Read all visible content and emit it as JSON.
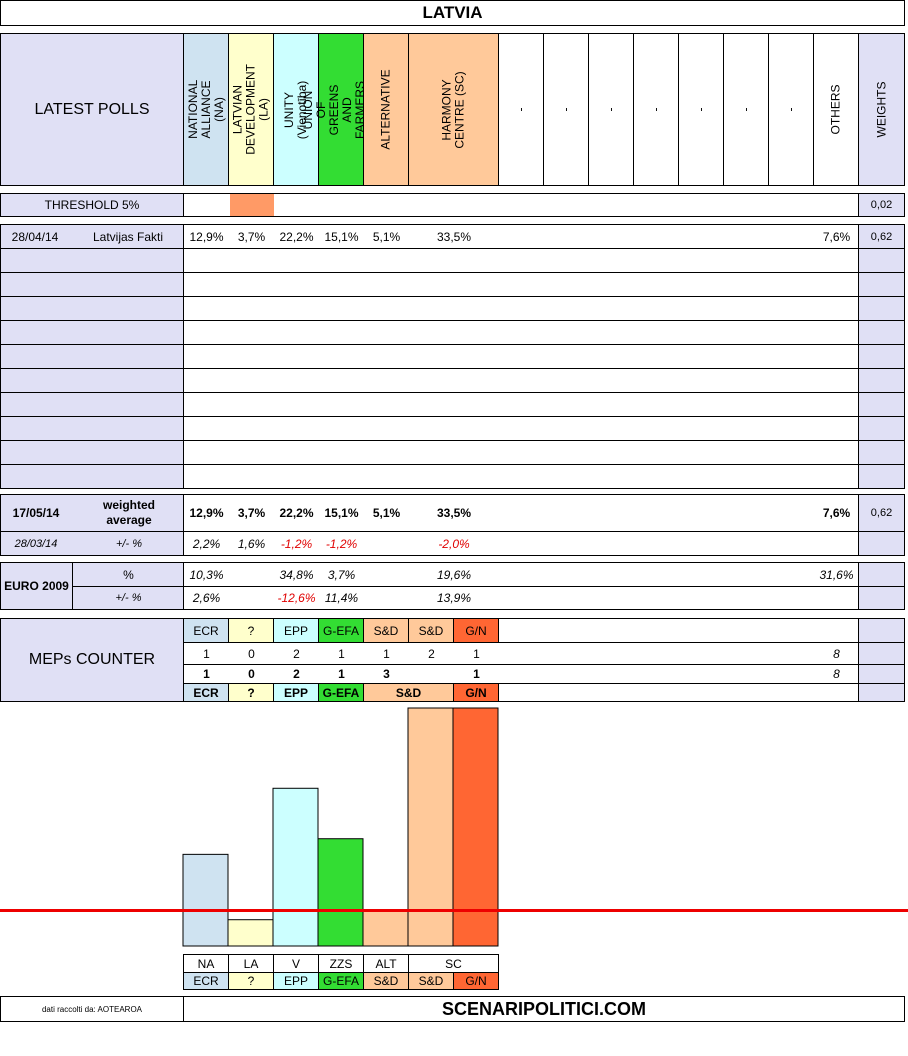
{
  "title": "LATVIA",
  "header": {
    "latest_polls": "LATEST POLLS",
    "parties": [
      {
        "label": "NATIONAL ALLIANCE (NA)",
        "color": "#cfe3f1"
      },
      {
        "label": "LATVIAN DEVELOPMENT (LA)",
        "color": "#ffffcc"
      },
      {
        "label": "UNITY (Vienotība)",
        "color": "#ccffff"
      },
      {
        "label": "UNION OF GREENS AND FARMERS (ZZS)",
        "color": "#33dd33"
      },
      {
        "label": "ALTERNATIVE",
        "color": "#ffc99a"
      },
      {
        "label": "HARMONY CENTRE (SC)",
        "color": "#ffc99a"
      }
    ],
    "dashes": [
      "-",
      "-",
      "-",
      "-",
      "-",
      "-",
      "-"
    ],
    "others": "OTHERS",
    "weights": "WEIGHTS"
  },
  "threshold": {
    "label": "THRESHOLD 5%",
    "weight": "0,02",
    "highlight_color": "#ff9a66"
  },
  "poll": {
    "date": "28/04/14",
    "source": "Latvijas Fakti",
    "values": [
      "12,9%",
      "3,7%",
      "22,2%",
      "15,1%",
      "5,1%",
      "33,5%"
    ],
    "others": "7,6%",
    "weight": "0,62"
  },
  "weighted": {
    "date": "17/05/14",
    "label": "weighted average",
    "values": [
      "12,9%",
      "3,7%",
      "22,2%",
      "15,1%",
      "5,1%",
      "33,5%"
    ],
    "others": "7,6%",
    "weight": "0,62",
    "prev_date": "28/03/14",
    "diff_label": "+/- %",
    "diffs": [
      "2,2%",
      "1,6%",
      "-1,2%",
      "-1,2%",
      "",
      "-2,0%"
    ]
  },
  "euro2009": {
    "label": "EURO 2009",
    "pct_label": "%",
    "pcts": [
      "10,3%",
      "",
      "34,8%",
      "3,7%",
      "",
      "19,6%"
    ],
    "others_pct": "31,6%",
    "diff_label": "+/- %",
    "diffs": [
      "2,6%",
      "",
      "-12,6%",
      "11,4%",
      "",
      "13,9%"
    ]
  },
  "meps": {
    "label": "MEPs COUNTER",
    "groups": [
      {
        "label": "ECR",
        "color": "#cfe3f1"
      },
      {
        "label": "?",
        "color": "#ffffcc"
      },
      {
        "label": "EPP",
        "color": "#ccffff"
      },
      {
        "label": "G-EFA",
        "color": "#33dd33"
      },
      {
        "label": "S&D",
        "color": "#ffc99a"
      },
      {
        "label": "S&D",
        "color": "#ffc99a"
      },
      {
        "label": "G/N",
        "color": "#ff6633"
      }
    ],
    "row1": [
      "1",
      "0",
      "2",
      "1",
      "1",
      "2",
      "1"
    ],
    "row1_total": "8",
    "row2": [
      "1",
      "0",
      "2",
      "1",
      "3",
      "1"
    ],
    "row2_total": "8",
    "row2_groups": [
      {
        "label": "ECR",
        "color": "#cfe3f1"
      },
      {
        "label": "?",
        "color": "#ffffcc"
      },
      {
        "label": "EPP",
        "color": "#ccffff"
      },
      {
        "label": "G-EFA",
        "color": "#33dd33"
      },
      {
        "label": "S&D",
        "color": "#ffc99a"
      },
      {
        "label": "G/N",
        "color": "#ff6633"
      }
    ]
  },
  "chart_data": {
    "type": "bar",
    "categories": [
      "NA",
      "LA",
      "V",
      "ZZS",
      "ALT",
      "SC",
      "SC"
    ],
    "values": [
      12.9,
      3.7,
      22.2,
      15.1,
      5.1,
      33.5,
      33.5
    ],
    "colors": [
      "#cfe3f1",
      "#ffffcc",
      "#ccffff",
      "#33dd33",
      "#ffc99a",
      "#ffc99a",
      "#ff6633"
    ],
    "threshold": 5,
    "threshold_color": "#ee0000",
    "ylim": [
      0,
      33.5
    ],
    "grid": false,
    "legend": "none"
  },
  "bottom_labels": [
    "NA",
    "LA",
    "V",
    "ZZS",
    "ALT",
    "SC"
  ],
  "bottom_groups": [
    {
      "label": "ECR",
      "color": "#cfe3f1"
    },
    {
      "label": "?",
      "color": "#ffffcc"
    },
    {
      "label": "EPP",
      "color": "#ccffff"
    },
    {
      "label": "G-EFA",
      "color": "#33dd33"
    },
    {
      "label": "S&D",
      "color": "#ffc99a"
    },
    {
      "label": "S&D",
      "color": "#ffc99a"
    },
    {
      "label": "G/N",
      "color": "#ff6633"
    }
  ],
  "footer": {
    "credit": "dati raccolti da: AOTEAROA",
    "site": "SCENARIPOLITICI.COM"
  }
}
